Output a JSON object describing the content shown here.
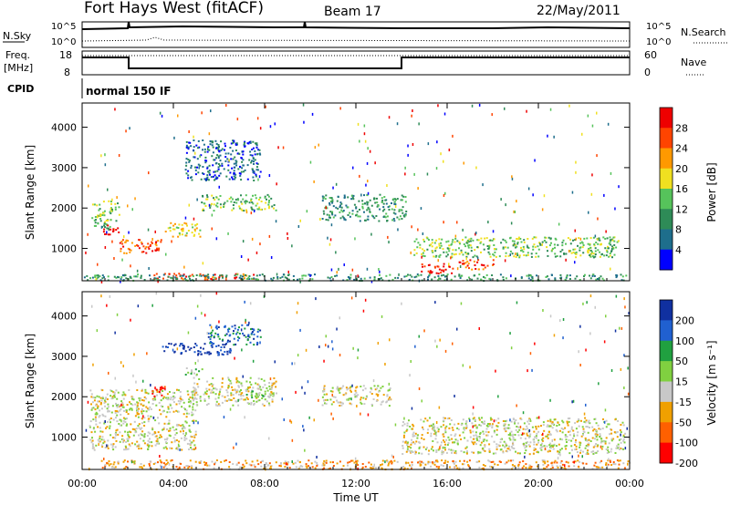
{
  "header": {
    "title": "Fort Hays West (fitACF)",
    "beam": "Beam 17",
    "date": "22/May/2011"
  },
  "top_panels": {
    "nsky_label": "N.Sky",
    "nsky_ticks": [
      "10^5",
      "10^0"
    ],
    "nsearch_label": "N.Search",
    "nsearch_ticks": [
      "10^5",
      "10^0"
    ],
    "freq_label_line1": "Freq.",
    "freq_label_line2": "[MHz]",
    "freq_ticks": [
      "18",
      "8"
    ],
    "nave_label": "Nave",
    "nave_ticks": [
      "60",
      "0"
    ],
    "cpid_label": "CPID",
    "cpid_value": "normal 150 IF"
  },
  "chart_data": [
    {
      "type": "heatmap",
      "name": "power",
      "ylabel": "Slant Range [km]",
      "yticks": [
        "1000",
        "2000",
        "3000",
        "4000"
      ],
      "ylim": [
        200,
        4600
      ],
      "xlim": [
        0,
        24
      ],
      "colorbar_label": "Power [dB]",
      "colorbar_ticks": [
        "4",
        "8",
        "12",
        "16",
        "20",
        "24",
        "28"
      ],
      "colorbar_colors": [
        "#0000ff",
        "#1e6e8c",
        "#2e8b57",
        "#56c35b",
        "#f0e020",
        "#ff9900",
        "#ff4400",
        "#ee0000"
      ],
      "regions": [
        {
          "t": [
            0.4,
            1.6
          ],
          "r": [
            1500,
            2200
          ],
          "level": 3
        },
        {
          "t": [
            0.9,
            1.6
          ],
          "r": [
            1350,
            1600
          ],
          "level": 7
        },
        {
          "t": [
            1.6,
            3.6
          ],
          "r": [
            900,
            1250
          ],
          "level": 6
        },
        {
          "t": [
            3.6,
            5.2
          ],
          "r": [
            1300,
            1650
          ],
          "level": 4
        },
        {
          "t": [
            5.2,
            8.5
          ],
          "r": [
            1950,
            2350
          ],
          "level": 3
        },
        {
          "t": [
            4.5,
            7.8
          ],
          "r": [
            2700,
            3700
          ],
          "level": 1
        },
        {
          "t": [
            10.5,
            14.2
          ],
          "r": [
            1700,
            2350
          ],
          "level": 2
        },
        {
          "t": [
            14.5,
            23.5
          ],
          "r": [
            800,
            1300
          ],
          "level": 3
        },
        {
          "t": [
            14.8,
            16.3
          ],
          "r": [
            400,
            650
          ],
          "level": 7
        },
        {
          "t": [
            16.5,
            18.0
          ],
          "r": [
            500,
            750
          ],
          "level": 6
        },
        {
          "t": [
            3.0,
            7.5
          ],
          "r": [
            250,
            400
          ],
          "level": 6
        },
        {
          "t": [
            0.0,
            24.0
          ],
          "r": [
            220,
            380
          ],
          "level": 2
        }
      ]
    },
    {
      "type": "heatmap",
      "name": "velocity",
      "ylabel": "Slant Range [km]",
      "yticks": [
        "1000",
        "2000",
        "3000",
        "4000"
      ],
      "ylim": [
        200,
        4600
      ],
      "xlim": [
        0,
        24
      ],
      "colorbar_label": "Velocity [m s⁻¹]",
      "colorbar_ticks": [
        "200",
        "100",
        "50",
        "15",
        "-15",
        "-50",
        "-100",
        "-200"
      ],
      "colorbar_colors": [
        "#1030a0",
        "#2060d0",
        "#20a040",
        "#80d040",
        "#c8c8c8",
        "#f0a000",
        "#ff6000",
        "#ff0000"
      ],
      "regions": [
        {
          "t": [
            0.3,
            5.0
          ],
          "r": [
            700,
            2200
          ],
          "level": 4
        },
        {
          "t": [
            4.8,
            8.5
          ],
          "r": [
            1800,
            2500
          ],
          "level": 4
        },
        {
          "t": [
            3.5,
            6.5
          ],
          "r": [
            3050,
            3350
          ],
          "level": 0
        },
        {
          "t": [
            5.5,
            7.8
          ],
          "r": [
            3300,
            3800
          ],
          "level": 1
        },
        {
          "t": [
            4.5,
            5.3
          ],
          "r": [
            2550,
            2750
          ],
          "level": 3
        },
        {
          "t": [
            3.0,
            3.6
          ],
          "r": [
            2000,
            2300
          ],
          "level": 7
        },
        {
          "t": [
            7.0,
            8.0
          ],
          "r": [
            2000,
            2200
          ],
          "level": 3
        },
        {
          "t": [
            10.5,
            13.5
          ],
          "r": [
            1800,
            2300
          ],
          "level": 4
        },
        {
          "t": [
            14.0,
            23.8
          ],
          "r": [
            600,
            1500
          ],
          "level": 4
        },
        {
          "t": [
            0.8,
            24.0
          ],
          "r": [
            220,
            450
          ],
          "level": 5
        }
      ]
    }
  ],
  "xaxis": {
    "label": "Time UT",
    "ticks": [
      "00:00",
      "04:00",
      "08:00",
      "12:00",
      "16:00",
      "20:00",
      "00:00"
    ]
  }
}
